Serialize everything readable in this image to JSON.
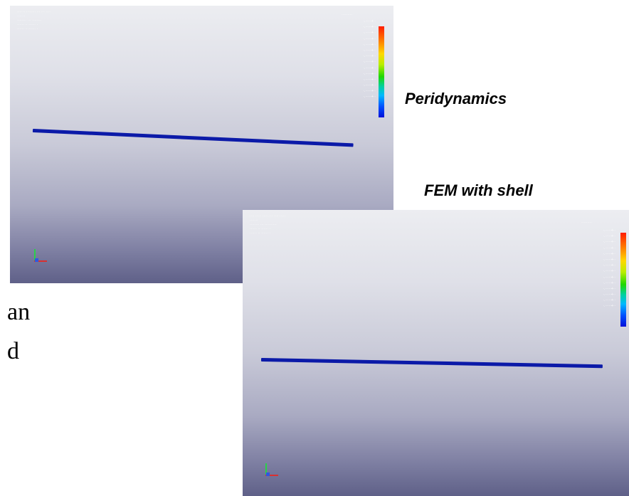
{
  "captions": {
    "peridynamics": "Peridynamics",
    "fem_shell": "FEM with shell"
  },
  "slide_text_fragments": [
    "an",
    "d"
  ],
  "viewports": {
    "peridynamics": {
      "hud_lines": [
        "···· ·· ········ ··· ··· ····",
        "·······",
        "········ ··· ········",
        "······ ·· ······ ·",
        "······ ·· ······ ·"
      ],
      "legend_title": "·········",
      "legend_labels": [
        "·.·····+··",
        "·.·····+··",
        "·.·····+··",
        "·.·····+··",
        "·.·····+··",
        "·.·····+··",
        "·.·····+··",
        "·.·····+··",
        "·.·····+··",
        "·.·····+··",
        "·.·····+··",
        "·.·····+··",
        "·.·····+··",
        "·.·····+··"
      ]
    },
    "fem_shell": {
      "hud_lines": [
        "···· ····· ····· ··· ···· ·····",
        "·······",
        "········ ··· ··········",
        "······ ·· ······ ·",
        "······ ·· ······ ·"
      ],
      "legend_title": "·········",
      "legend_labels": [
        "·.·····+··",
        "·.·····+··",
        "·.·····+··",
        "·.·····+··",
        "·.·····+··",
        "·.·····+··",
        "·.·····+··",
        "·.·····+··",
        "·.·····+··",
        "·.·····+··",
        "·.·····+··",
        "·.·····+··",
        "·.·····+··",
        "·.·····+··"
      ]
    }
  },
  "colors": {
    "beam": "#0b1aa8",
    "background_top": "#ecedf1",
    "background_bottom": "#5f6088"
  }
}
